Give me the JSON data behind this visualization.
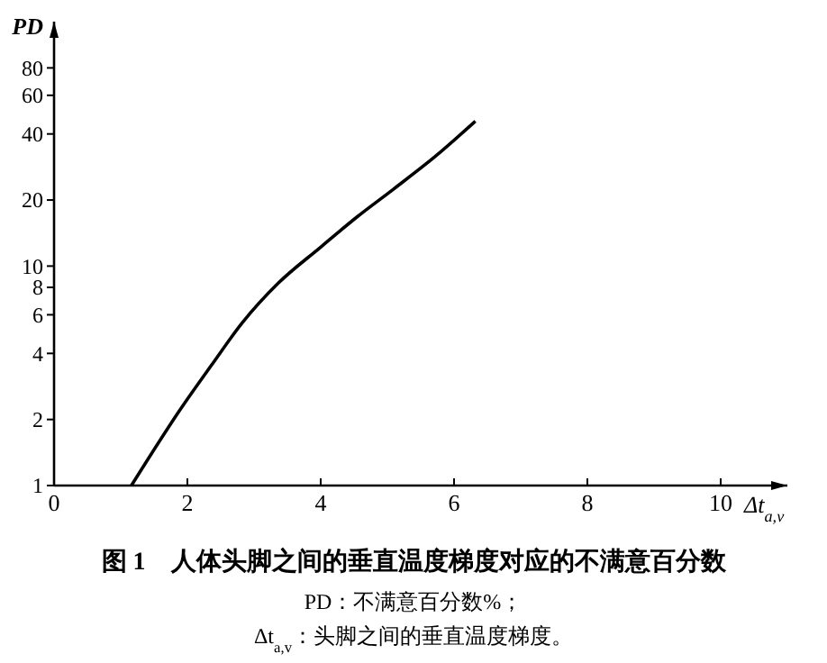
{
  "chart_data": {
    "type": "line",
    "title": "图 1　人体头脚之间的垂直温度梯度对应的不满意百分数",
    "xlabel": "Δt$_{a,v}$",
    "ylabel": "PD",
    "log": "y",
    "grid": false,
    "marker": "none",
    "line_style": "solid",
    "annotations": [
      "PD：不满意百分数%；",
      "Δt$_{a,v}$：头脚之间的垂直温度梯度。"
    ],
    "xlim": [
      0,
      11
    ],
    "xticks": [
      0,
      2,
      4,
      6,
      8,
      10
    ],
    "ylim": [
      1,
      130
    ],
    "yticks": [
      1,
      2,
      4,
      6,
      8,
      10,
      20,
      40,
      60,
      80
    ],
    "series": [
      {
        "color": "#000000",
        "x": [
          1.16,
          1.91,
          2.36,
          2.82,
          3.36,
          4.0,
          4.55,
          5.09,
          5.73,
          6.32
        ],
        "values": [
          1,
          2.26,
          3.53,
          5.5,
          8.34,
          12.2,
          16.8,
          22.4,
          31.8,
          45.7
        ]
      }
    ]
  }
}
